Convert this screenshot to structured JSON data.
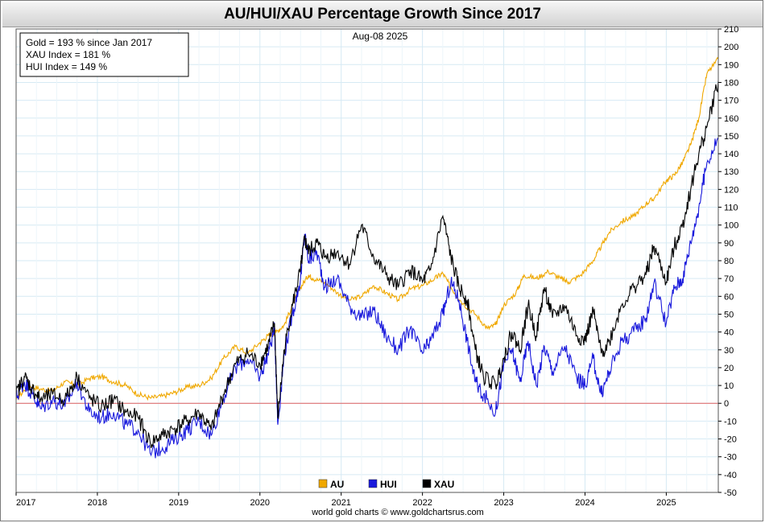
{
  "chart_data": {
    "type": "line",
    "title": "AU/HUI/XAU Percentage Growth Since 2017",
    "date_label": "Aug-08  2025",
    "credit": "world gold charts © www.goldchartsrus.com",
    "info_lines": [
      "Gold = 193 % since Jan 2017",
      "XAU Index = 181 %",
      "HUI Index = 149 %"
    ],
    "x_ticks": [
      "2017",
      "2018",
      "2019",
      "2020",
      "2021",
      "2022",
      "2023",
      "2024",
      "2025"
    ],
    "ylim": [
      -50,
      210
    ],
    "y_ticks": [
      -50,
      -40,
      -30,
      -20,
      -10,
      0,
      10,
      20,
      30,
      40,
      50,
      60,
      70,
      80,
      90,
      100,
      110,
      120,
      130,
      140,
      150,
      160,
      170,
      180,
      190,
      200,
      210
    ],
    "xlim": [
      2017.0,
      2025.64
    ],
    "grid": true,
    "zero_line": true,
    "legend_position": "bottom-center",
    "series": [
      {
        "name": "AU",
        "color": "#f0a800",
        "x": [
          2017.0,
          2017.15,
          2017.3,
          2017.45,
          2017.6,
          2017.75,
          2017.9,
          2018.05,
          2018.2,
          2018.35,
          2018.5,
          2018.65,
          2018.8,
          2018.95,
          2019.1,
          2019.25,
          2019.4,
          2019.55,
          2019.7,
          2019.85,
          2020.0,
          2020.1,
          2020.2,
          2020.3,
          2020.4,
          2020.5,
          2020.6,
          2020.65,
          2020.8,
          2020.95,
          2021.1,
          2021.25,
          2021.4,
          2021.55,
          2021.7,
          2021.85,
          2022.0,
          2022.15,
          2022.25,
          2022.35,
          2022.5,
          2022.65,
          2022.8,
          2022.9,
          2023.0,
          2023.15,
          2023.25,
          2023.4,
          2023.55,
          2023.7,
          2023.8,
          2023.95,
          2024.1,
          2024.2,
          2024.3,
          2024.45,
          2024.6,
          2024.75,
          2024.85,
          2025.0,
          2025.1,
          2025.2,
          2025.3,
          2025.4,
          2025.5,
          2025.64
        ],
        "values": [
          2,
          10,
          8,
          7,
          12,
          10,
          14,
          15,
          12,
          10,
          5,
          3,
          4,
          6,
          9,
          10,
          14,
          25,
          32,
          28,
          34,
          38,
          40,
          44,
          55,
          65,
          72,
          70,
          68,
          62,
          58,
          60,
          66,
          62,
          58,
          64,
          66,
          70,
          73,
          65,
          56,
          50,
          42,
          44,
          55,
          62,
          72,
          70,
          74,
          70,
          68,
          72,
          80,
          88,
          96,
          102,
          105,
          112,
          115,
          125,
          128,
          135,
          145,
          160,
          185,
          193
        ]
      },
      {
        "name": "HUI",
        "color": "#1a1adc",
        "x": [
          2017.0,
          2017.1,
          2017.2,
          2017.3,
          2017.45,
          2017.6,
          2017.75,
          2017.9,
          2018.05,
          2018.2,
          2018.35,
          2018.5,
          2018.65,
          2018.8,
          2018.95,
          2019.1,
          2019.25,
          2019.4,
          2019.55,
          2019.7,
          2019.85,
          2020.0,
          2020.1,
          2020.18,
          2020.22,
          2020.3,
          2020.4,
          2020.5,
          2020.55,
          2020.6,
          2020.7,
          2020.8,
          2020.95,
          2021.1,
          2021.25,
          2021.4,
          2021.55,
          2021.7,
          2021.85,
          2022.0,
          2022.1,
          2022.25,
          2022.35,
          2022.45,
          2022.55,
          2022.65,
          2022.75,
          2022.9,
          2023.0,
          2023.1,
          2023.2,
          2023.3,
          2023.4,
          2023.5,
          2023.6,
          2023.75,
          2023.9,
          2024.0,
          2024.1,
          2024.2,
          2024.3,
          2024.45,
          2024.6,
          2024.75,
          2024.85,
          2025.0,
          2025.1,
          2025.2,
          2025.3,
          2025.4,
          2025.5,
          2025.64
        ],
        "values": [
          3,
          12,
          5,
          -3,
          2,
          -2,
          12,
          -5,
          -8,
          -5,
          -12,
          -15,
          -28,
          -25,
          -20,
          -15,
          -10,
          -18,
          3,
          20,
          25,
          15,
          28,
          42,
          -12,
          28,
          50,
          70,
          95,
          80,
          85,
          65,
          70,
          55,
          48,
          52,
          38,
          30,
          42,
          28,
          35,
          50,
          68,
          58,
          35,
          12,
          5,
          -5,
          22,
          30,
          12,
          35,
          10,
          32,
          18,
          32,
          14,
          10,
          25,
          5,
          18,
          35,
          40,
          48,
          68,
          45,
          65,
          70,
          90,
          110,
          135,
          149
        ]
      },
      {
        "name": "XAU",
        "color": "#000000",
        "x": [
          2017.0,
          2017.1,
          2017.2,
          2017.3,
          2017.45,
          2017.6,
          2017.75,
          2017.9,
          2018.05,
          2018.2,
          2018.35,
          2018.5,
          2018.65,
          2018.8,
          2018.95,
          2019.1,
          2019.25,
          2019.4,
          2019.55,
          2019.7,
          2019.85,
          2020.0,
          2020.1,
          2020.18,
          2020.22,
          2020.3,
          2020.4,
          2020.5,
          2020.55,
          2020.6,
          2020.7,
          2020.8,
          2020.95,
          2021.1,
          2021.25,
          2021.4,
          2021.55,
          2021.7,
          2021.85,
          2022.0,
          2022.1,
          2022.25,
          2022.35,
          2022.45,
          2022.55,
          2022.65,
          2022.75,
          2022.9,
          2023.0,
          2023.1,
          2023.2,
          2023.3,
          2023.4,
          2023.5,
          2023.6,
          2023.75,
          2023.9,
          2024.0,
          2024.1,
          2024.2,
          2024.3,
          2024.45,
          2024.6,
          2024.75,
          2024.85,
          2025.0,
          2025.1,
          2025.2,
          2025.3,
          2025.4,
          2025.5,
          2025.64
        ],
        "values": [
          5,
          15,
          8,
          2,
          5,
          2,
          15,
          3,
          -2,
          2,
          -5,
          -8,
          -22,
          -18,
          -14,
          -10,
          -5,
          -15,
          5,
          22,
          28,
          22,
          32,
          45,
          -8,
          30,
          55,
          75,
          92,
          85,
          90,
          82,
          85,
          78,
          100,
          82,
          72,
          65,
          75,
          68,
          75,
          105,
          82,
          65,
          58,
          30,
          15,
          10,
          25,
          40,
          30,
          55,
          38,
          65,
          48,
          55,
          38,
          35,
          52,
          28,
          35,
          55,
          65,
          72,
          88,
          68,
          88,
          100,
          120,
          140,
          155,
          181
        ]
      }
    ]
  }
}
